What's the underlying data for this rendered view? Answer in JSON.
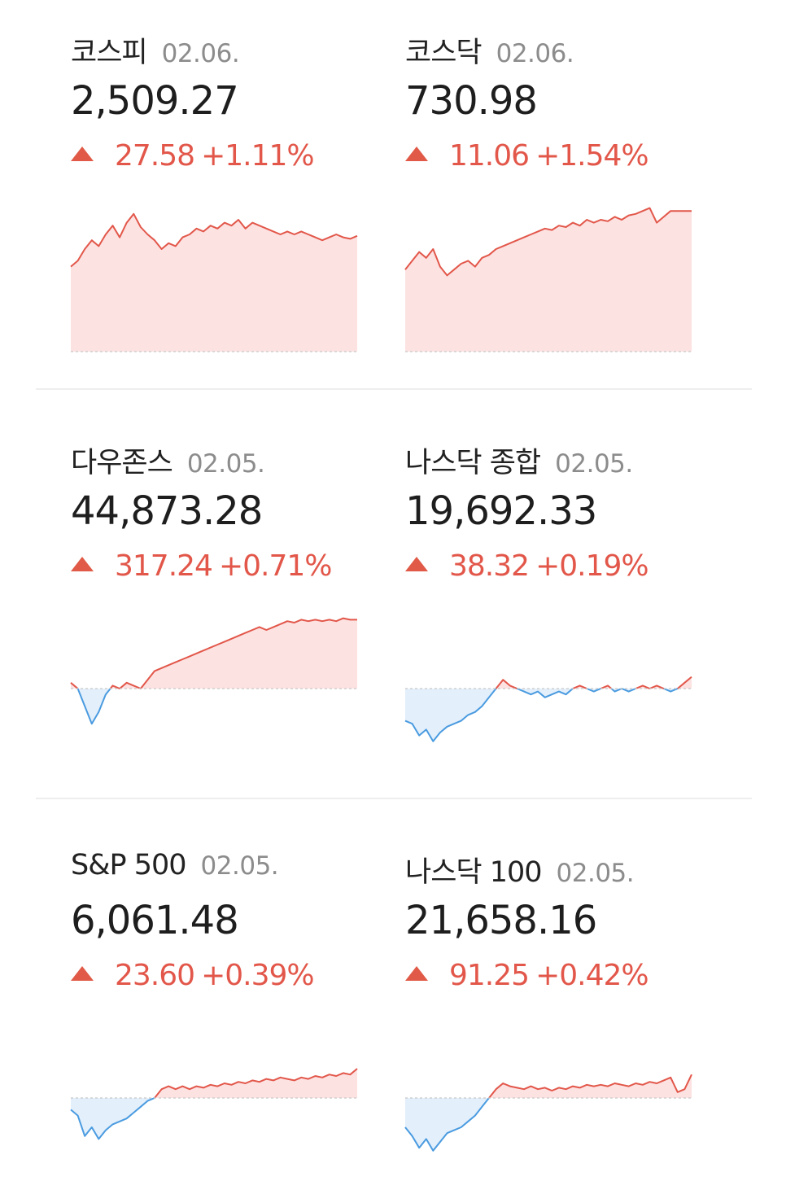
{
  "colors": {
    "up": "#e2574a",
    "down": "#4a9be0",
    "upFill": "#fde2e2",
    "downFill": "#e3effb",
    "baseline": "#c8c8c8"
  },
  "cards": [
    {
      "name": "코스피",
      "date": "02.06.",
      "value": "2,509.27",
      "change": "27.58",
      "percent": "+1.11%",
      "chart_data": {
        "type": "area",
        "base": 0.0,
        "values": [
          0.58,
          0.62,
          0.7,
          0.76,
          0.72,
          0.8,
          0.86,
          0.78,
          0.88,
          0.94,
          0.85,
          0.8,
          0.76,
          0.7,
          0.74,
          0.72,
          0.78,
          0.8,
          0.84,
          0.82,
          0.86,
          0.84,
          0.88,
          0.86,
          0.9,
          0.84,
          0.88,
          0.86,
          0.84,
          0.82,
          0.8,
          0.82,
          0.8,
          0.82,
          0.8,
          0.78,
          0.76,
          0.78,
          0.8,
          0.78,
          0.77,
          0.79
        ]
      }
    },
    {
      "name": "코스닥",
      "date": "02.06.",
      "value": "730.98",
      "change": "11.06",
      "percent": "+1.54%",
      "chart_data": {
        "type": "area",
        "base": 0.0,
        "values": [
          0.56,
          0.62,
          0.68,
          0.64,
          0.7,
          0.58,
          0.52,
          0.56,
          0.6,
          0.62,
          0.58,
          0.64,
          0.66,
          0.7,
          0.72,
          0.74,
          0.76,
          0.78,
          0.8,
          0.82,
          0.84,
          0.83,
          0.86,
          0.85,
          0.88,
          0.86,
          0.9,
          0.88,
          0.9,
          0.89,
          0.92,
          0.9,
          0.93,
          0.94,
          0.96,
          0.98,
          0.88,
          0.92,
          0.96,
          0.96,
          0.96,
          0.96
        ]
      }
    },
    {
      "name": "다우존스",
      "date": "02.05.",
      "value": "44,873.28",
      "change": "317.24",
      "percent": "+0.71%",
      "chart_data": {
        "type": "area",
        "base": 0.5,
        "values": [
          0.54,
          0.5,
          0.38,
          0.26,
          0.34,
          0.46,
          0.52,
          0.5,
          0.54,
          0.52,
          0.5,
          0.56,
          0.62,
          0.64,
          0.66,
          0.68,
          0.7,
          0.72,
          0.74,
          0.76,
          0.78,
          0.8,
          0.82,
          0.84,
          0.86,
          0.88,
          0.9,
          0.92,
          0.9,
          0.92,
          0.94,
          0.96,
          0.95,
          0.97,
          0.96,
          0.97,
          0.96,
          0.97,
          0.96,
          0.98,
          0.97,
          0.97
        ]
      }
    },
    {
      "name": "나스닥 종합",
      "date": "02.05.",
      "value": "19,692.33",
      "change": "38.32",
      "percent": "+0.19%",
      "chart_data": {
        "type": "area",
        "base": 0.5,
        "values": [
          0.28,
          0.26,
          0.18,
          0.22,
          0.14,
          0.2,
          0.24,
          0.26,
          0.28,
          0.32,
          0.34,
          0.38,
          0.44,
          0.5,
          0.56,
          0.52,
          0.5,
          0.48,
          0.46,
          0.48,
          0.44,
          0.46,
          0.48,
          0.46,
          0.5,
          0.52,
          0.5,
          0.48,
          0.5,
          0.52,
          0.48,
          0.5,
          0.48,
          0.5,
          0.52,
          0.5,
          0.52,
          0.5,
          0.48,
          0.5,
          0.54,
          0.58
        ]
      }
    },
    {
      "name": "S&P 500",
      "date": "02.05.",
      "value": "6,061.48",
      "change": "23.60",
      "percent": "+0.39%",
      "chart_data": {
        "type": "area",
        "base": 0.5,
        "values": [
          0.42,
          0.38,
          0.24,
          0.3,
          0.22,
          0.28,
          0.32,
          0.34,
          0.36,
          0.4,
          0.44,
          0.48,
          0.5,
          0.56,
          0.58,
          0.56,
          0.58,
          0.56,
          0.58,
          0.57,
          0.59,
          0.58,
          0.6,
          0.59,
          0.61,
          0.6,
          0.62,
          0.61,
          0.63,
          0.62,
          0.64,
          0.63,
          0.62,
          0.64,
          0.63,
          0.65,
          0.64,
          0.66,
          0.65,
          0.67,
          0.66,
          0.7
        ]
      }
    },
    {
      "name": "나스닥 100",
      "date": "02.05.",
      "value": "21,658.16",
      "change": "91.25",
      "percent": "+0.42%",
      "chart_data": {
        "type": "area",
        "base": 0.5,
        "values": [
          0.3,
          0.24,
          0.16,
          0.22,
          0.14,
          0.2,
          0.26,
          0.28,
          0.3,
          0.34,
          0.38,
          0.44,
          0.5,
          0.56,
          0.6,
          0.58,
          0.57,
          0.56,
          0.58,
          0.56,
          0.57,
          0.55,
          0.57,
          0.56,
          0.58,
          0.57,
          0.59,
          0.58,
          0.59,
          0.58,
          0.6,
          0.59,
          0.58,
          0.6,
          0.59,
          0.61,
          0.6,
          0.62,
          0.64,
          0.54,
          0.56,
          0.66
        ]
      }
    }
  ]
}
